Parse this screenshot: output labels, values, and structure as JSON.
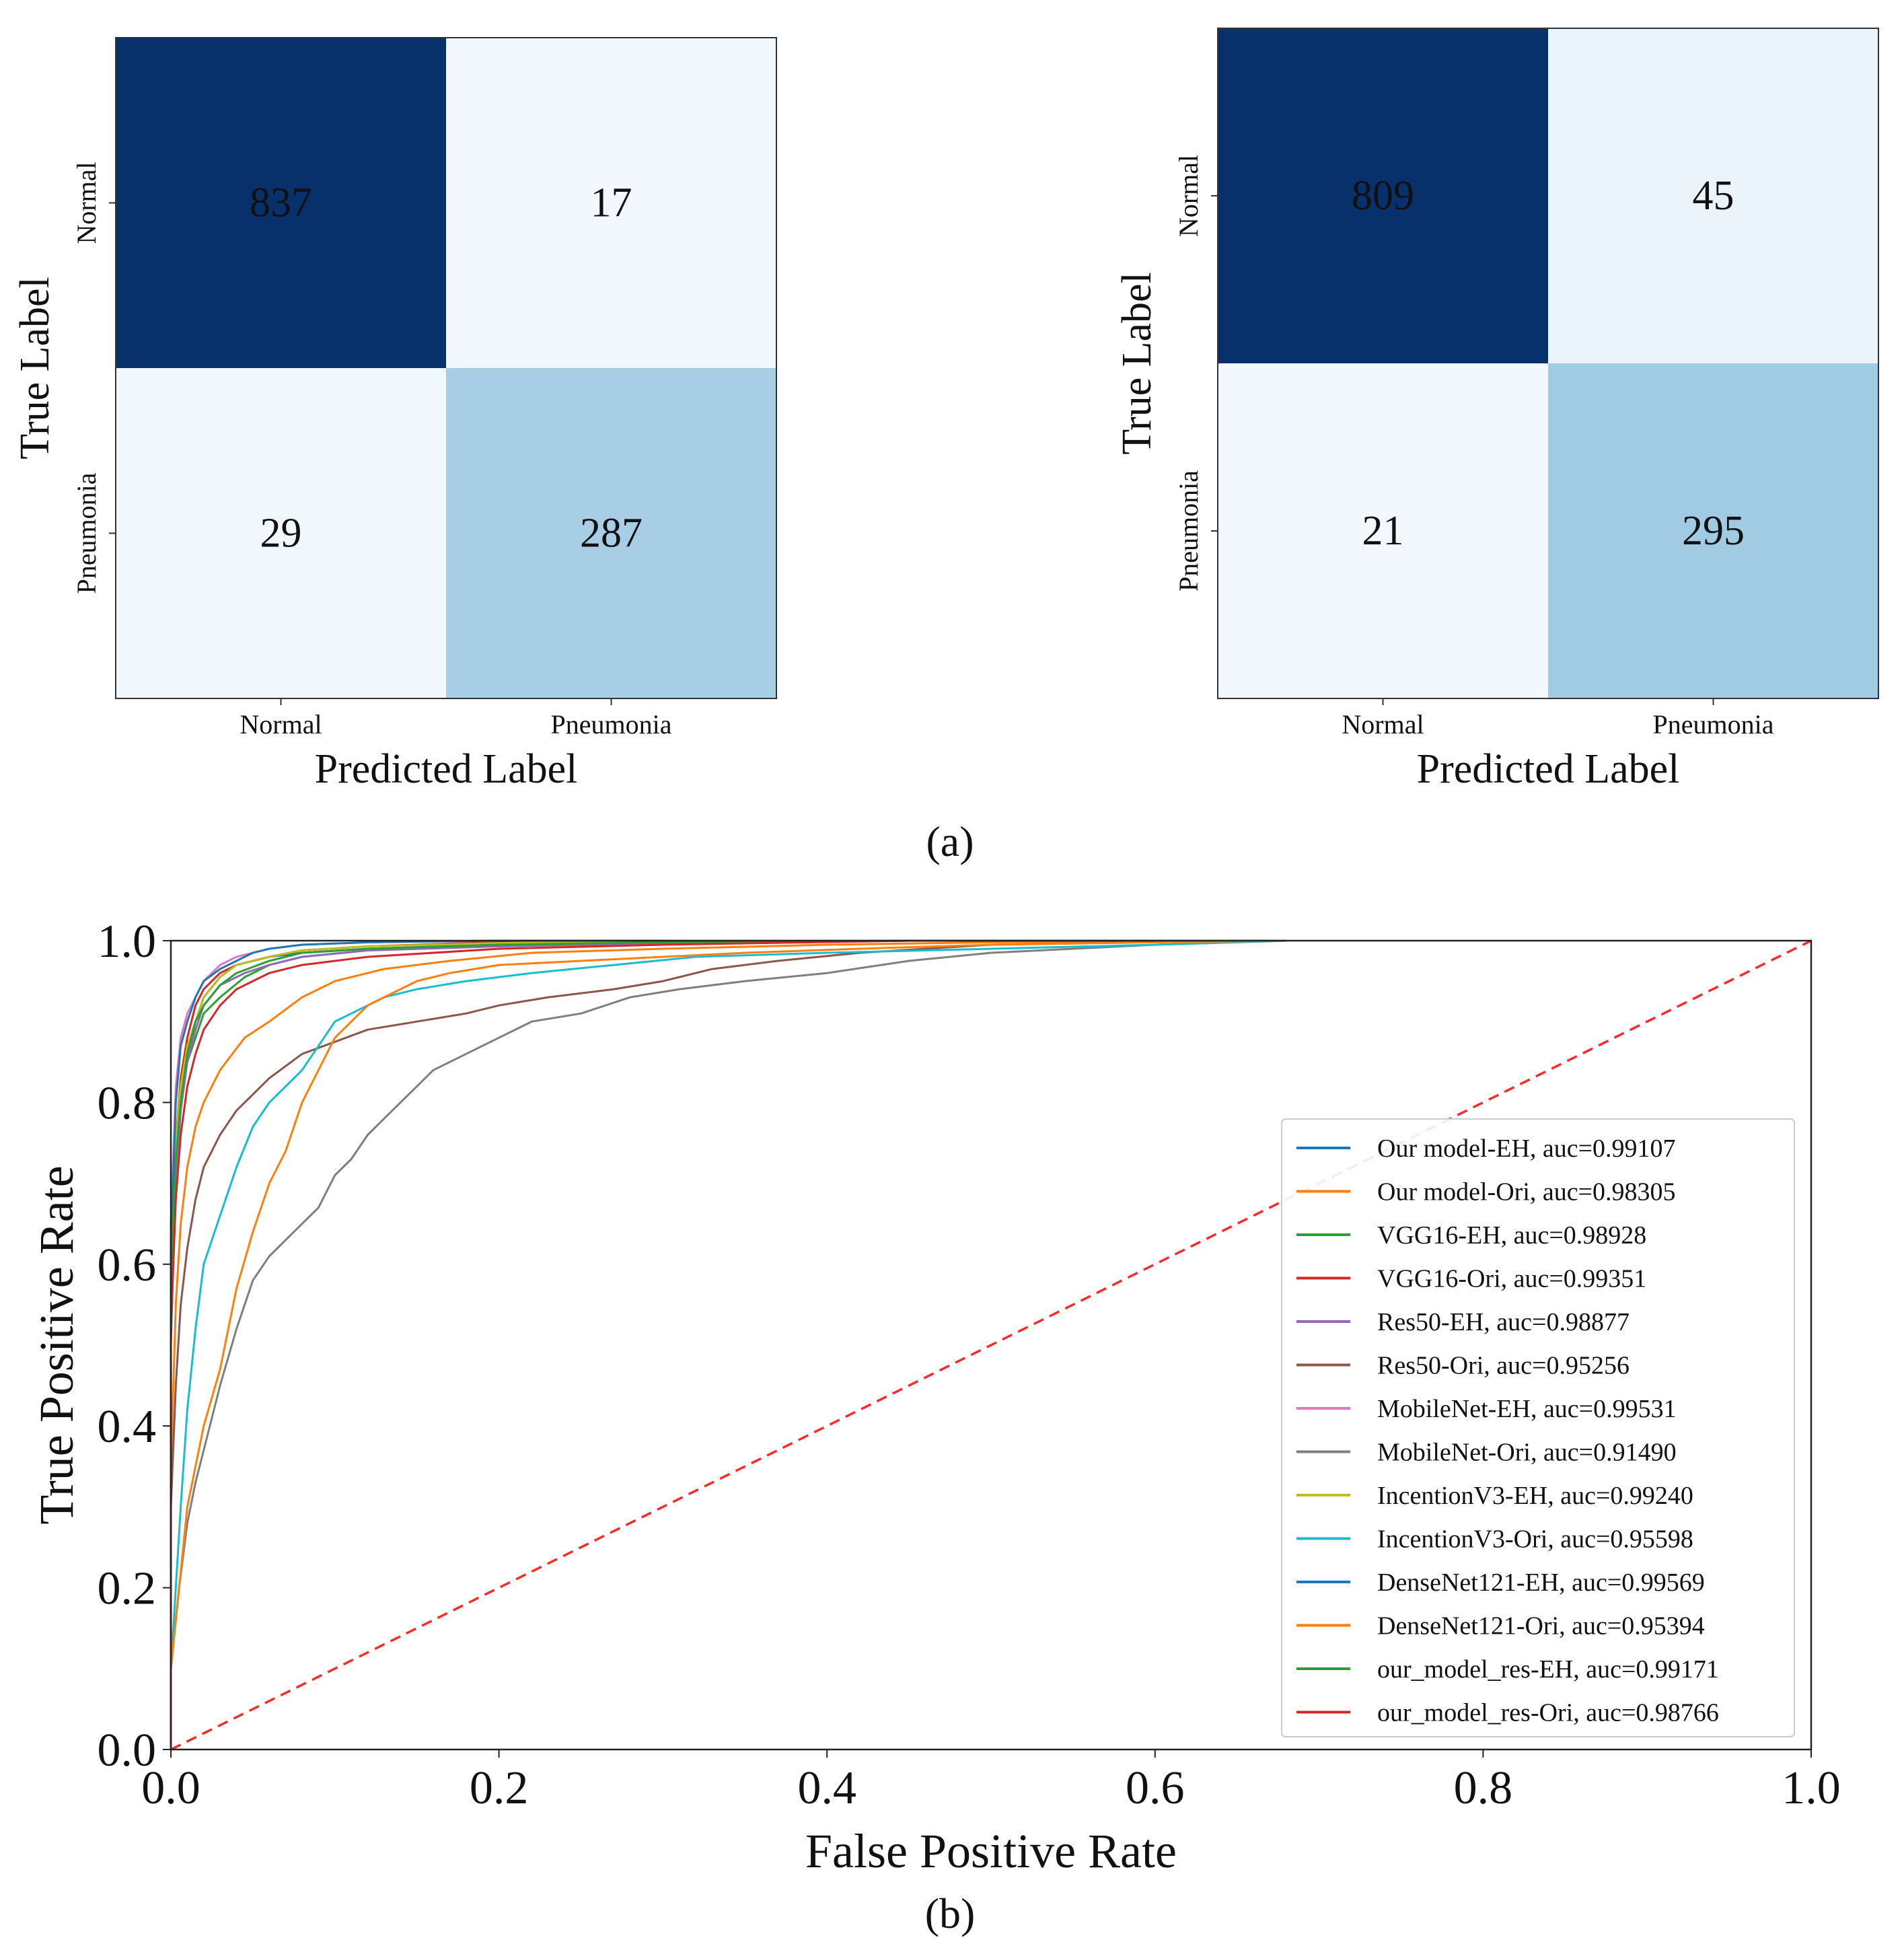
{
  "figure": {
    "panel_a_caption": "(a)",
    "panel_b_caption": "(b)"
  },
  "chart_data": [
    {
      "type": "heatmap",
      "name": "confusion-matrix-left",
      "title": "",
      "xlabel": "Predicted Label",
      "ylabel": "True Label",
      "x_categories": [
        "Normal",
        "Pneumonia"
      ],
      "y_categories": [
        "Normal",
        "Pneumonia"
      ],
      "matrix": [
        [
          837,
          17
        ],
        [
          29,
          287
        ]
      ],
      "colormap": "Blues"
    },
    {
      "type": "heatmap",
      "name": "confusion-matrix-right",
      "title": "",
      "xlabel": "Predicted Label",
      "ylabel": "True Label",
      "x_categories": [
        "Normal",
        "Pneumonia"
      ],
      "y_categories": [
        "Normal",
        "Pneumonia"
      ],
      "matrix": [
        [
          809,
          45
        ],
        [
          21,
          295
        ]
      ],
      "colormap": "Blues"
    },
    {
      "type": "line",
      "name": "roc-curves",
      "title": "",
      "xlabel": "False Positive Rate",
      "ylabel": "True Positive Rate",
      "xlim": [
        0.0,
        1.0
      ],
      "ylim": [
        0.0,
        1.0
      ],
      "xticks": [
        "0.0",
        "0.2",
        "0.4",
        "0.6",
        "0.8",
        "1.0"
      ],
      "yticks": [
        "0.0",
        "0.2",
        "0.4",
        "0.6",
        "0.8",
        "1.0"
      ],
      "legend_position": "center-right",
      "diagonal": {
        "style": "dashed",
        "color": "#ff2a2a",
        "x": [
          0,
          1
        ],
        "y": [
          0,
          1
        ]
      },
      "series": [
        {
          "label": "Our model-EH, auc=0.99107",
          "color": "#1f77b4",
          "x": [
            0,
            0,
            0.003,
            0.006,
            0.01,
            0.015,
            0.02,
            0.03,
            0.04,
            0.06,
            0.08,
            0.12,
            0.2,
            0.3,
            0.45,
            0.65
          ],
          "y": [
            0,
            0.5,
            0.72,
            0.8,
            0.86,
            0.9,
            0.93,
            0.955,
            0.97,
            0.98,
            0.985,
            0.99,
            0.995,
            0.998,
            1.0,
            1.0
          ]
        },
        {
          "label": "Our model-Ori, auc=0.98305",
          "color": "#ff7f0e",
          "x": [
            0,
            0,
            0.003,
            0.006,
            0.01,
            0.015,
            0.02,
            0.03,
            0.045,
            0.06,
            0.08,
            0.1,
            0.13,
            0.17,
            0.22,
            0.3,
            0.4,
            0.5,
            0.65
          ],
          "y": [
            0,
            0.35,
            0.55,
            0.65,
            0.72,
            0.77,
            0.8,
            0.84,
            0.88,
            0.9,
            0.93,
            0.95,
            0.965,
            0.975,
            0.985,
            0.99,
            0.995,
            0.998,
            1.0
          ]
        },
        {
          "label": "VGG16-EH, auc=0.98928",
          "color": "#2ca02c",
          "x": [
            0,
            0,
            0.003,
            0.006,
            0.01,
            0.015,
            0.02,
            0.03,
            0.045,
            0.06,
            0.08,
            0.12,
            0.2,
            0.3,
            0.45,
            0.6
          ],
          "y": [
            0,
            0.55,
            0.72,
            0.8,
            0.85,
            0.88,
            0.91,
            0.93,
            0.955,
            0.97,
            0.98,
            0.988,
            0.993,
            0.997,
            1.0,
            1.0
          ]
        },
        {
          "label": "VGG16-Ori, auc=0.99351",
          "color": "#d62728",
          "x": [
            0,
            0,
            0.003,
            0.006,
            0.01,
            0.015,
            0.02,
            0.03,
            0.04,
            0.06,
            0.08,
            0.12,
            0.18,
            0.3,
            0.5
          ],
          "y": [
            0,
            0.6,
            0.75,
            0.83,
            0.88,
            0.92,
            0.94,
            0.96,
            0.97,
            0.98,
            0.988,
            0.993,
            0.997,
            1.0,
            1.0
          ]
        },
        {
          "label": "Res50-EH, auc=0.98877",
          "color": "#9467bd",
          "x": [
            0,
            0,
            0.003,
            0.006,
            0.01,
            0.015,
            0.02,
            0.03,
            0.045,
            0.06,
            0.08,
            0.12,
            0.2,
            0.3,
            0.45,
            0.6
          ],
          "y": [
            0,
            0.55,
            0.7,
            0.79,
            0.85,
            0.89,
            0.92,
            0.945,
            0.96,
            0.97,
            0.98,
            0.988,
            0.993,
            0.997,
            1.0,
            1.0
          ]
        },
        {
          "label": "Res50-Ori, auc=0.95256",
          "color": "#8c564b",
          "x": [
            0,
            0,
            0.003,
            0.006,
            0.01,
            0.015,
            0.02,
            0.03,
            0.04,
            0.05,
            0.06,
            0.08,
            0.1,
            0.12,
            0.15,
            0.18,
            0.2,
            0.23,
            0.27,
            0.3,
            0.33,
            0.37,
            0.42,
            0.5,
            0.65,
            0.68
          ],
          "y": [
            0,
            0.3,
            0.45,
            0.55,
            0.62,
            0.68,
            0.72,
            0.76,
            0.79,
            0.81,
            0.83,
            0.86,
            0.875,
            0.89,
            0.9,
            0.91,
            0.92,
            0.93,
            0.94,
            0.95,
            0.965,
            0.975,
            0.985,
            0.995,
            1.0,
            1.0
          ]
        },
        {
          "label": "MobileNet-EH, auc=0.99531",
          "color": "#e377c2",
          "x": [
            0,
            0,
            0.003,
            0.006,
            0.01,
            0.015,
            0.02,
            0.03,
            0.04,
            0.06,
            0.08,
            0.12,
            0.2,
            0.3
          ],
          "y": [
            0,
            0.65,
            0.82,
            0.88,
            0.91,
            0.93,
            0.95,
            0.97,
            0.98,
            0.99,
            0.995,
            0.998,
            1.0,
            1.0
          ]
        },
        {
          "label": "MobileNet-Ori, auc=0.91490",
          "color": "#7f7f7f",
          "x": [
            0,
            0,
            0.005,
            0.01,
            0.015,
            0.02,
            0.03,
            0.04,
            0.05,
            0.06,
            0.07,
            0.08,
            0.09,
            0.1,
            0.11,
            0.12,
            0.13,
            0.14,
            0.15,
            0.16,
            0.18,
            0.2,
            0.22,
            0.25,
            0.28,
            0.31,
            0.35,
            0.4,
            0.45,
            0.5,
            0.55,
            0.6,
            0.68
          ],
          "y": [
            0,
            0.1,
            0.2,
            0.28,
            0.33,
            0.37,
            0.45,
            0.52,
            0.58,
            0.61,
            0.63,
            0.65,
            0.67,
            0.71,
            0.73,
            0.76,
            0.78,
            0.8,
            0.82,
            0.84,
            0.86,
            0.88,
            0.9,
            0.91,
            0.93,
            0.94,
            0.95,
            0.96,
            0.975,
            0.985,
            0.99,
            0.995,
            1.0
          ]
        },
        {
          "label": "IncentionV3-EH, auc=0.99240",
          "color": "#bcbd22",
          "x": [
            0,
            0,
            0.003,
            0.006,
            0.01,
            0.015,
            0.02,
            0.03,
            0.04,
            0.06,
            0.08,
            0.12,
            0.2,
            0.3,
            0.45
          ],
          "y": [
            0,
            0.6,
            0.75,
            0.82,
            0.87,
            0.9,
            0.93,
            0.955,
            0.97,
            0.98,
            0.988,
            0.993,
            0.997,
            1.0,
            1.0
          ]
        },
        {
          "label": "IncentionV3-Ori, auc=0.95598",
          "color": "#17becf",
          "x": [
            0,
            0,
            0.003,
            0.006,
            0.01,
            0.015,
            0.02,
            0.03,
            0.04,
            0.05,
            0.06,
            0.07,
            0.08,
            0.09,
            0.1,
            0.11,
            0.12,
            0.13,
            0.15,
            0.18,
            0.22,
            0.27,
            0.32,
            0.4,
            0.5,
            0.6,
            0.65,
            0.68
          ],
          "y": [
            0,
            0.1,
            0.2,
            0.3,
            0.42,
            0.52,
            0.6,
            0.66,
            0.72,
            0.77,
            0.8,
            0.82,
            0.84,
            0.87,
            0.9,
            0.91,
            0.92,
            0.93,
            0.94,
            0.95,
            0.96,
            0.97,
            0.98,
            0.985,
            0.99,
            0.995,
            0.998,
            1.0
          ]
        },
        {
          "label": "DenseNet121-EH, auc=0.99569",
          "color": "#1f77b4",
          "x": [
            0,
            0,
            0.003,
            0.006,
            0.01,
            0.015,
            0.02,
            0.03,
            0.04,
            0.05,
            0.06,
            0.08,
            0.12,
            0.2,
            0.3
          ],
          "y": [
            0,
            0.62,
            0.8,
            0.87,
            0.9,
            0.93,
            0.95,
            0.965,
            0.975,
            0.985,
            0.99,
            0.995,
            0.998,
            1.0,
            1.0
          ]
        },
        {
          "label": "DenseNet121-Ori, auc=0.95394",
          "color": "#ff7f0e",
          "x": [
            0,
            0,
            0.005,
            0.01,
            0.015,
            0.02,
            0.03,
            0.04,
            0.05,
            0.06,
            0.07,
            0.08,
            0.09,
            0.1,
            0.11,
            0.12,
            0.13,
            0.14,
            0.15,
            0.17,
            0.2,
            0.25,
            0.3,
            0.35,
            0.42,
            0.5,
            0.6,
            0.68
          ],
          "y": [
            0,
            0.1,
            0.2,
            0.3,
            0.35,
            0.4,
            0.47,
            0.57,
            0.64,
            0.7,
            0.74,
            0.8,
            0.84,
            0.88,
            0.9,
            0.92,
            0.93,
            0.94,
            0.95,
            0.96,
            0.97,
            0.975,
            0.98,
            0.985,
            0.99,
            0.995,
            0.998,
            1.0
          ]
        },
        {
          "label": "our_model_res-EH, auc=0.99171",
          "color": "#2ca02c",
          "x": [
            0,
            0,
            0.003,
            0.006,
            0.01,
            0.015,
            0.02,
            0.03,
            0.04,
            0.06,
            0.08,
            0.12,
            0.2,
            0.3,
            0.45,
            0.6
          ],
          "y": [
            0,
            0.58,
            0.73,
            0.8,
            0.86,
            0.9,
            0.92,
            0.945,
            0.96,
            0.975,
            0.985,
            0.99,
            0.995,
            0.998,
            1.0,
            1.0
          ]
        },
        {
          "label": "our_model_res-Ori, auc=0.98766",
          "color": "#d62728",
          "x": [
            0,
            0,
            0.003,
            0.006,
            0.01,
            0.015,
            0.02,
            0.03,
            0.04,
            0.06,
            0.08,
            0.12,
            0.2,
            0.3,
            0.45,
            0.6
          ],
          "y": [
            0,
            0.52,
            0.68,
            0.76,
            0.82,
            0.86,
            0.89,
            0.92,
            0.94,
            0.96,
            0.97,
            0.98,
            0.99,
            0.995,
            1.0,
            1.0
          ]
        }
      ]
    }
  ]
}
